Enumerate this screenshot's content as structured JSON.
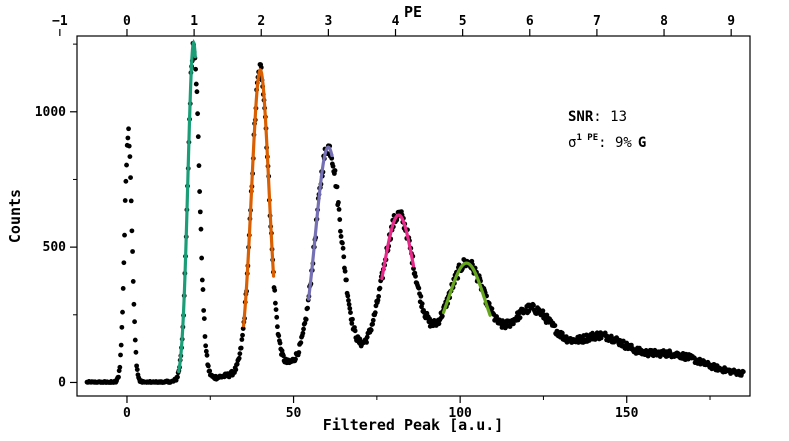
{
  "chart_data": {
    "type": "scatter",
    "xlabel": "Filtered Peak [a.u.]",
    "ylabel": "Counts",
    "x2label": "PE",
    "xlim": [
      -15,
      187
    ],
    "ylim": [
      -50,
      1280
    ],
    "x_ticks": [
      0,
      50,
      100,
      150
    ],
    "x_tick_labels": [
      "0",
      "50",
      "100",
      "150"
    ],
    "y_ticks": [
      0,
      500,
      1000
    ],
    "y_tick_labels": [
      "0",
      "500",
      "1000"
    ],
    "x2_ticks": [
      -1,
      0,
      1,
      2,
      3,
      4,
      5,
      6,
      7,
      8,
      9
    ],
    "x2_tick_labels": [
      "−1",
      "0",
      "1",
      "2",
      "3",
      "4",
      "5",
      "6",
      "7",
      "8",
      "9"
    ],
    "x2_scale": {
      "zero_at": 0,
      "per_pe": 20.15
    },
    "grid": false,
    "annotation": {
      "snr_label": "SNR",
      "snr_value": ": 13",
      "sigma_symbol": "σ",
      "sigma_sup": "1 PE",
      "sigma_value": ": 9%",
      "sigma_suffix": "G"
    },
    "series": [
      {
        "marker": "dot",
        "color": "#000000",
        "peaks": [
          {
            "mu": 0.4,
            "sigma": 1.1,
            "amp": 930
          },
          {
            "mu": 20.0,
            "sigma": 1.7,
            "amp": 1250
          },
          {
            "mu": 40.0,
            "sigma": 2.6,
            "amp": 1110
          },
          {
            "mu": 60.4,
            "sigma": 3.8,
            "amp": 790
          },
          {
            "mu": 81.5,
            "sigma": 4.6,
            "amp": 510
          },
          {
            "mu": 102.0,
            "sigma": 5.4,
            "amp": 330
          },
          {
            "mu": 121.5,
            "sigma": 6.2,
            "amp": 175
          },
          {
            "mu": 142.5,
            "sigma": 7.2,
            "amp": 95
          },
          {
            "mu": 164.0,
            "sigma": 8.0,
            "amp": 50
          }
        ],
        "baseline": [
          {
            "x": 20,
            "y": 5
          },
          {
            "x": 50,
            "y": 65
          },
          {
            "x": 90,
            "y": 120
          },
          {
            "x": 130,
            "y": 90
          },
          {
            "x": 187,
            "y": 30
          }
        ],
        "x_range": [
          -12,
          185
        ],
        "n_points": 980
      }
    ],
    "fits": [
      {
        "color": "#1b9e77",
        "mu": 20.0,
        "sigma": 1.7,
        "amp": 1250,
        "from": 15.5,
        "to": 20.5
      },
      {
        "color": "#d95f02",
        "mu": 40.0,
        "sigma": 2.6,
        "amp": 1110,
        "from": 35.0,
        "to": 44.0
      },
      {
        "color": "#7570b3",
        "mu": 60.4,
        "sigma": 3.8,
        "amp": 790,
        "from": 54.5,
        "to": 61.5
      },
      {
        "color": "#e7298a",
        "mu": 81.5,
        "sigma": 4.6,
        "amp": 510,
        "from": 76.5,
        "to": 86.0
      },
      {
        "color": "#66a61e",
        "mu": 102.0,
        "sigma": 5.4,
        "amp": 330,
        "from": 95.0,
        "to": 109.0
      }
    ]
  }
}
